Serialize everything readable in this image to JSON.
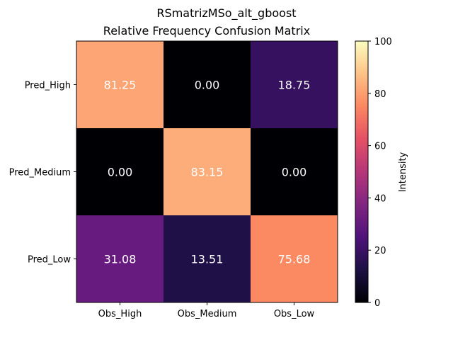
{
  "chart_data": {
    "type": "heatmap",
    "title": "RSmatrizMSo_alt_gboost",
    "subtitle": "Relative Frequency Confusion Matrix",
    "x_categories": [
      "Obs_High",
      "Obs_Medium",
      "Obs_Low"
    ],
    "y_categories": [
      "Pred_High",
      "Pred_Medium",
      "Pred_Low"
    ],
    "values": [
      [
        81.25,
        0.0,
        18.75
      ],
      [
        0.0,
        83.15,
        0.0
      ],
      [
        31.08,
        13.51,
        75.68
      ]
    ],
    "cell_labels": [
      [
        "81.25",
        "0.00",
        "18.75"
      ],
      [
        "0.00",
        "83.15",
        "0.00"
      ],
      [
        "31.08",
        "13.51",
        "75.68"
      ]
    ],
    "colormap": "magma",
    "colorbar": {
      "label": "Intensity",
      "range": [
        0,
        100
      ],
      "ticks": [
        0,
        20,
        40,
        60,
        80,
        100
      ],
      "tick_labels": [
        "0",
        "20",
        "40",
        "60",
        "80",
        "100"
      ]
    },
    "cell_text_color": "#ffffff"
  }
}
